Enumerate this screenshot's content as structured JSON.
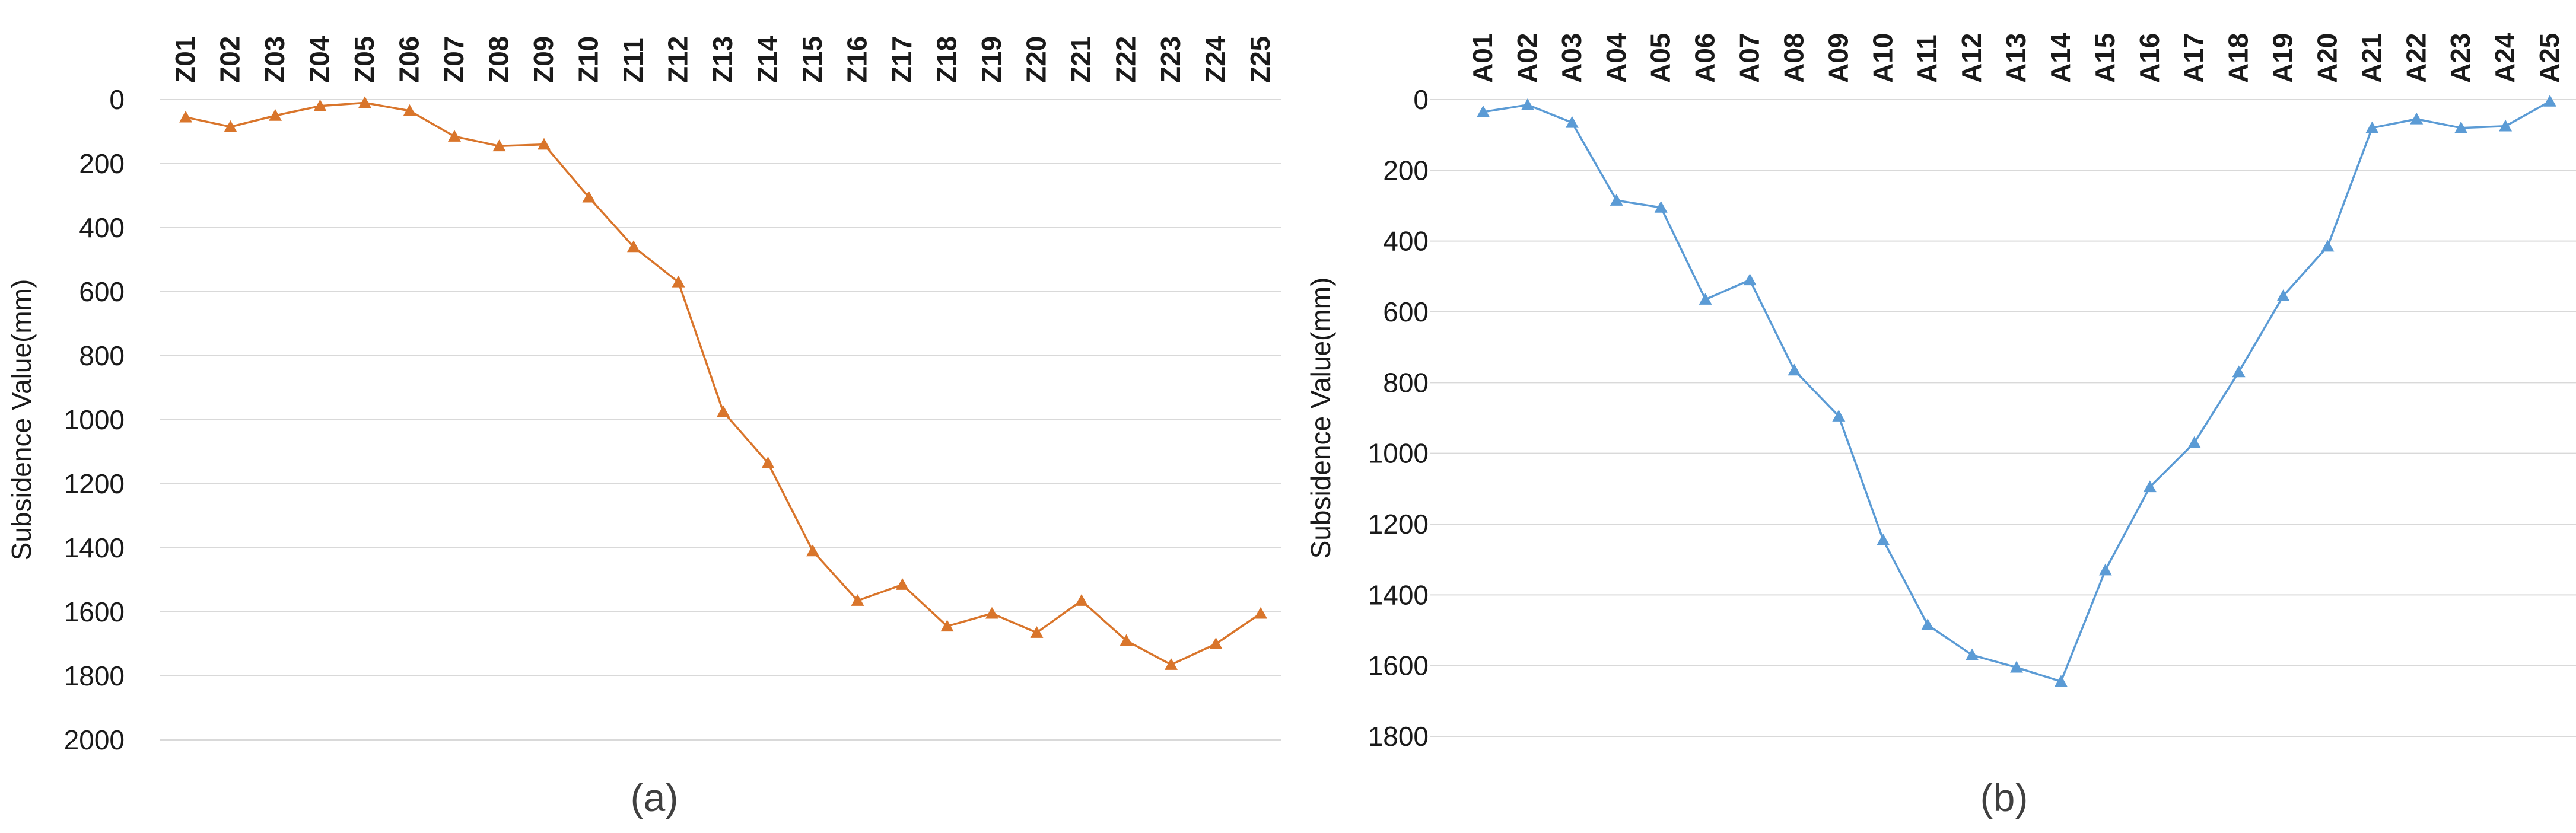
{
  "chart_data": [
    {
      "panel_label": "(a)",
      "type": "line",
      "ylabel": "Subsidence Value(mm)",
      "y_axis_reversed": true,
      "ylim": [
        0,
        2000
      ],
      "y_ticks": [
        0,
        200,
        400,
        600,
        800,
        1000,
        1200,
        1400,
        1600,
        1800,
        2000
      ],
      "x_axis_position": "top",
      "grid": "horizontal",
      "marker": "triangle",
      "color": "#d9752b",
      "categories": [
        "Z01",
        "Z02",
        "Z03",
        "Z04",
        "Z05",
        "Z06",
        "Z07",
        "Z08",
        "Z09",
        "Z10",
        "Z11",
        "Z12",
        "Z13",
        "Z14",
        "Z15",
        "Z16",
        "Z17",
        "Z18",
        "Z19",
        "Z20",
        "Z21",
        "Z22",
        "Z23",
        "Z24",
        "Z25"
      ],
      "values": [
        55,
        85,
        50,
        20,
        10,
        35,
        115,
        145,
        140,
        305,
        460,
        570,
        975,
        1135,
        1410,
        1565,
        1515,
        1645,
        1605,
        1665,
        1565,
        1690,
        1765,
        1700,
        1605
      ]
    },
    {
      "panel_label": "(b)",
      "type": "line",
      "ylabel": "Subsidence Value(mm)",
      "y_axis_reversed": true,
      "ylim": [
        0,
        1800
      ],
      "y_ticks": [
        0,
        200,
        400,
        600,
        800,
        1000,
        1200,
        1400,
        1600,
        1800
      ],
      "x_axis_position": "top",
      "grid": "horizontal",
      "marker": "triangle",
      "color": "#5b9bd5",
      "categories": [
        "A01",
        "A02",
        "A03",
        "A04",
        "A05",
        "A06",
        "A07",
        "A08",
        "A09",
        "A10",
        "A11",
        "A12",
        "A13",
        "A14",
        "A15",
        "A16",
        "A17",
        "A18",
        "A19",
        "A20",
        "A21",
        "A22",
        "A23",
        "A24",
        "A25"
      ],
      "values": [
        35,
        15,
        65,
        285,
        305,
        565,
        510,
        765,
        895,
        1245,
        1485,
        1570,
        1605,
        1645,
        1330,
        1095,
        970,
        770,
        555,
        415,
        80,
        55,
        80,
        75,
        5
      ]
    }
  ]
}
